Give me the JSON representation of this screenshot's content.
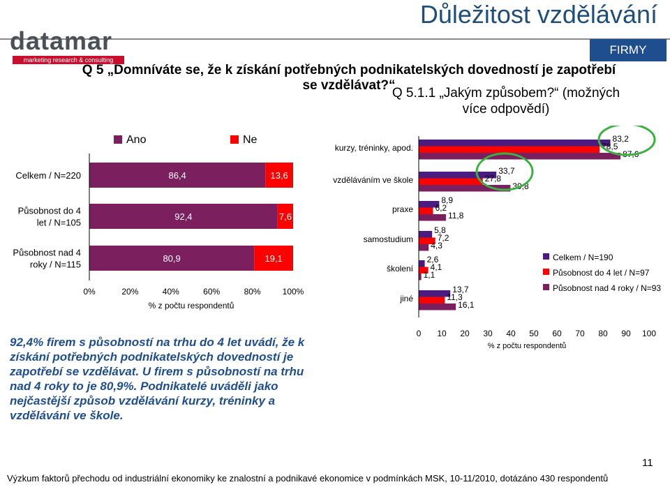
{
  "header": {
    "title": "Důležitost vzdělávání",
    "badge": "FIRMY"
  },
  "logo": {
    "name": "datamar",
    "tagline": "marketing research & consulting"
  },
  "question_main": "Q 5 „Domníváte se, že k získání potřebných podnikatelských dovedností je zapotřebí se vzdělávat?“",
  "question_sub": "Q 5.1.1 „Jakým způsobem?“ (možných více odpovědí)",
  "summary": "92,4% firem s působností na trhu do 4 let uvádí, že k získání potřebných podnikatelských dovedností je zapotřebí se vzdělávat. U firem s působností na trhu nad 4 roky to je 80,9%. Podnikatelé uváděli jako nejčastější způsob vzdělávání kurzy, tréninky a vzdělávání ve škole.",
  "footer": "Výzkum faktorů přechodu od industriální ekonomiky ke znalostní a podnikavé ekonomice v podmínkách MSK, 10-11/2010, dotázáno 430 respondentů",
  "page_number": "11",
  "colors": {
    "ano": "#7b1f5e",
    "ne": "#ff0000",
    "series1": "#4b1c80",
    "series2": "#ff0000",
    "series3": "#7b1f5e",
    "highlight": "#3cb043"
  },
  "chart_data": [
    {
      "type": "bar",
      "orientation": "horizontal",
      "stacked": true,
      "categories": [
        "Celkem / N=220",
        "Působnost do 4 let / N=105",
        "Působnost nad 4 roky / N=115"
      ],
      "series": [
        {
          "name": "Ano",
          "values": [
            86.4,
            92.4,
            80.9
          ],
          "labels": [
            "86,4",
            "92,4",
            "80,9"
          ]
        },
        {
          "name": "Ne",
          "values": [
            13.6,
            7.6,
            19.1
          ],
          "labels": [
            "13,6",
            "7,6",
            "19,1"
          ]
        }
      ],
      "xlabel": "% z počtu respondentů",
      "xlim": [
        0,
        100
      ],
      "ticks": [
        "0%",
        "20%",
        "40%",
        "60%",
        "80%",
        "100%"
      ],
      "legend": "top"
    },
    {
      "type": "bar",
      "orientation": "horizontal",
      "categories": [
        "kurzy, tréninky, apod.",
        "vzděláváním ve škole",
        "praxe",
        "samostudium",
        "školení",
        "jiné"
      ],
      "series": [
        {
          "name": "Celkem / N=190",
          "values": [
            83.2,
            33.7,
            8.9,
            5.8,
            2.6,
            13.7
          ],
          "labels": [
            "83,2",
            "33,7",
            "8,9",
            "5,8",
            "2,6",
            "13,7"
          ]
        },
        {
          "name": "Působnost do 4 let / N=97",
          "values": [
            78.5,
            27.8,
            6.2,
            7.2,
            4.1,
            11.3
          ],
          "labels": [
            "78,5",
            "27,8",
            "6,2",
            "7,2",
            "4,1",
            "11,3"
          ]
        },
        {
          "name": "Působnost nad 4 roky / N=93",
          "values": [
            87.6,
            39.8,
            11.8,
            4.3,
            1.1,
            16.1
          ],
          "labels": [
            "87,6",
            "39,8",
            "11,8",
            "4,3",
            "1,1",
            "16,1"
          ]
        }
      ],
      "xlabel": "% z počtu respondentů",
      "xlim": [
        0,
        100
      ],
      "ticks": [
        "0",
        "10",
        "20",
        "30",
        "40",
        "50",
        "60",
        "70",
        "80",
        "90",
        "100"
      ],
      "legend": "right"
    }
  ]
}
